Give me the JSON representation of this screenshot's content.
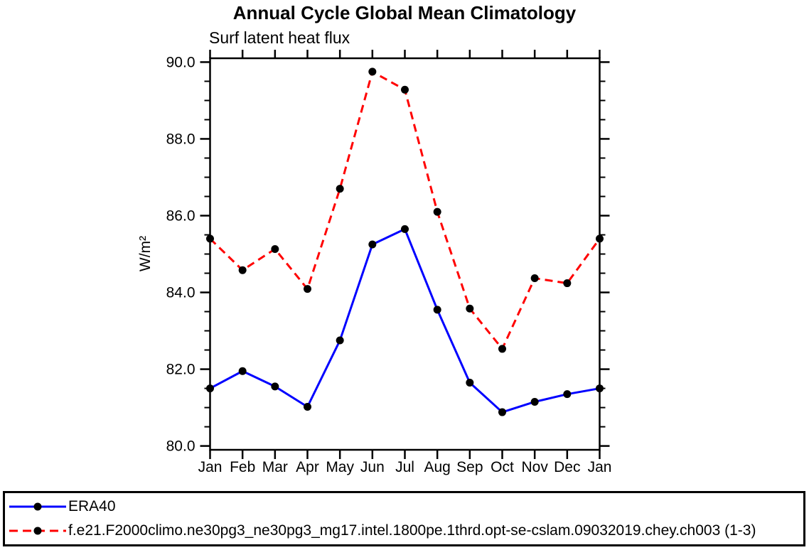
{
  "chart_data": {
    "type": "line",
    "title": "Annual Cycle Global Mean Climatology",
    "subtitle": "Surf latent heat flux",
    "xlabel": "",
    "ylabel": "W/m²",
    "categories": [
      "Jan",
      "Feb",
      "Mar",
      "Apr",
      "May",
      "Jun",
      "Jul",
      "Aug",
      "Sep",
      "Oct",
      "Nov",
      "Dec",
      "Jan"
    ],
    "series": [
      {
        "name": "ERA40",
        "color": "#0000ff",
        "line_style": "solid",
        "marker": "circle",
        "marker_color": "#000000",
        "values": [
          81.5,
          81.95,
          81.55,
          81.02,
          82.75,
          85.25,
          85.65,
          83.55,
          81.65,
          80.88,
          81.15,
          81.35,
          81.5
        ]
      },
      {
        "name": "f.e21.F2000climo.ne30pg3_ne30pg3_mg17.intel.1800pe.1thrd.opt-se-cslam.09032019.chey.ch003 (1-3)",
        "color": "#ff0000",
        "line_style": "dashed",
        "marker": "circle",
        "marker_color": "#000000",
        "values": [
          85.4,
          84.58,
          85.13,
          84.09,
          86.7,
          89.75,
          89.28,
          86.1,
          83.58,
          82.53,
          84.37,
          84.24,
          85.4
        ]
      }
    ],
    "ylim": [
      79.9,
      90.1
    ],
    "yticks_major": [
      80.0,
      82.0,
      84.0,
      86.0,
      88.0,
      90.0
    ],
    "ytick_labels": [
      "80.0",
      "82.0",
      "84.0",
      "86.0",
      "88.0",
      "90.0"
    ],
    "ytick_minor_step": 0.5,
    "grid": false,
    "legend_position": "bottom",
    "frame_color": "#000000"
  }
}
